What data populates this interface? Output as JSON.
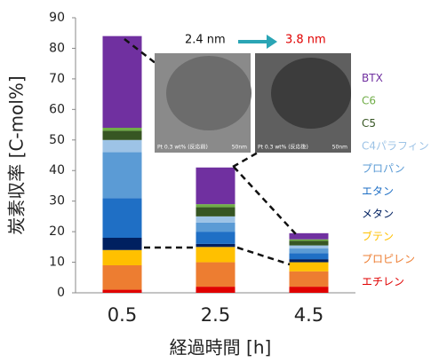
{
  "chart_data": {
    "type": "stacked_bar",
    "x_label": "経過時間 [h]",
    "y_label": "炭素収率 [C-mol%]",
    "categories": [
      "0.5",
      "2.5",
      "4.5"
    ],
    "ylim": [
      0,
      90
    ],
    "yticks": [
      0,
      10,
      20,
      30,
      40,
      50,
      60,
      70,
      80,
      90
    ],
    "series": [
      {
        "name": "エチレン",
        "color": "#e00000",
        "values": [
          1,
          2,
          2
        ]
      },
      {
        "name": "プロピレン",
        "color": "#ed7d31",
        "values": [
          8,
          8,
          5
        ]
      },
      {
        "name": "ブテン",
        "color": "#ffc000",
        "values": [
          5,
          5,
          3
        ]
      },
      {
        "name": "メタン",
        "color": "#002060",
        "values": [
          4,
          1,
          1
        ]
      },
      {
        "name": "エタン",
        "color": "#1f6fc5",
        "values": [
          13,
          4,
          2
        ]
      },
      {
        "name": "プロパン",
        "color": "#5b9bd5",
        "values": [
          15,
          3,
          1.5
        ]
      },
      {
        "name": "C4パラフィン",
        "color": "#9dc3e6",
        "values": [
          4,
          2,
          1
        ]
      },
      {
        "name": "C5",
        "color": "#375623",
        "values": [
          3,
          3,
          1.5
        ]
      },
      {
        "name": "C6",
        "color": "#70ad47",
        "values": [
          1,
          1,
          0.5
        ]
      },
      {
        "name": "BTX",
        "color": "#7030a0",
        "values": [
          30,
          12,
          2
        ]
      }
    ],
    "annotations": [
      "2.4 nm",
      "3.8 nm",
      "Pt 0.3 wt% (反応前)",
      "Pt 0.3 wt% (反応後)",
      "50nm",
      "50nm"
    ]
  }
}
